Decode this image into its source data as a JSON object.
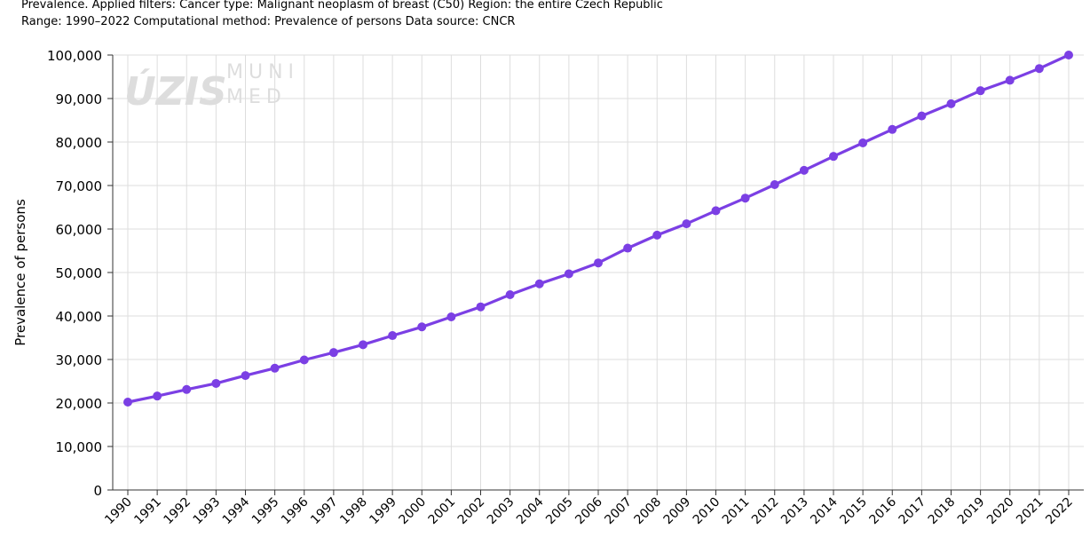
{
  "header": {
    "line1": "Prevalence. Applied filters: Cancer type: Malignant neoplasm of breast (C50) Region: the entire Czech Republic",
    "line2": "Range: 1990–2022 Computational method: Prevalence of persons Data source: CNCR"
  },
  "watermark": {
    "left_text": "ÚZIS",
    "right_text_top": "MUNI",
    "right_text_bottom": "MED"
  },
  "colors": {
    "series": "#7b3fe4",
    "grid": "#dddddd",
    "axis": "#333333"
  },
  "chart_data": {
    "type": "line",
    "title": "",
    "xlabel": "",
    "ylabel": "Prevalence of persons",
    "grid": true,
    "legend": "none",
    "ylim": [
      0,
      100000
    ],
    "yticks": [
      "0",
      "10,000",
      "20,000",
      "30,000",
      "40,000",
      "50,000",
      "60,000",
      "70,000",
      "80,000",
      "90,000",
      "100,000"
    ],
    "categories": [
      "1990",
      "1991",
      "1992",
      "1993",
      "1994",
      "1995",
      "1996",
      "1997",
      "1998",
      "1999",
      "2000",
      "2001",
      "2002",
      "2003",
      "2004",
      "2005",
      "2006",
      "2007",
      "2008",
      "2009",
      "2010",
      "2011",
      "2012",
      "2013",
      "2014",
      "2015",
      "2016",
      "2017",
      "2018",
      "2019",
      "2020",
      "2021",
      "2022"
    ],
    "series": [
      {
        "values": [
          20200,
          21600,
          23100,
          24500,
          26300,
          28000,
          29900,
          31600,
          33400,
          35500,
          37500,
          39800,
          42100,
          44900,
          47400,
          49700,
          52200,
          55600,
          58600,
          61200,
          64200,
          67100,
          70200,
          73500,
          76700,
          79800,
          82900,
          86000,
          88800,
          91800,
          94200,
          96900,
          100000
        ]
      }
    ]
  }
}
